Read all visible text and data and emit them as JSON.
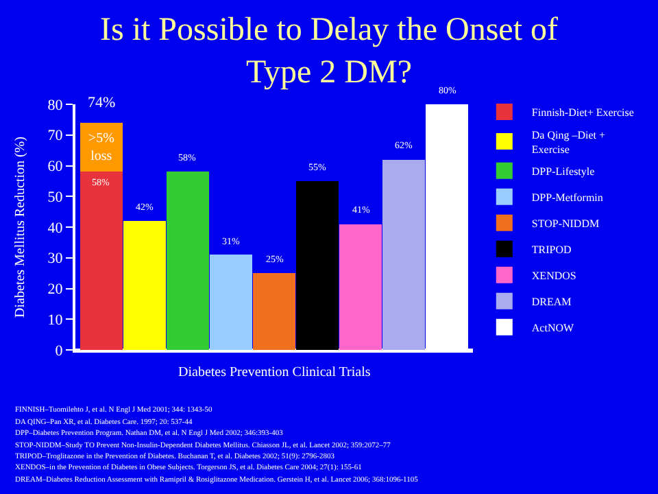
{
  "chart_data": {
    "type": "bar",
    "title": "Is it Possible to Delay the Onset of Type 2 DM?",
    "xlabel": "Diabetes Prevention Clinical Trials",
    "ylabel": "Diabetes Mellitus Reduction (%)",
    "categories": [
      null,
      null,
      null,
      null,
      null,
      null,
      null,
      null,
      null
    ],
    "stacked": true,
    "series": [
      {
        "name": "Finnish-Diet+ Exercise",
        "color": "#e8323c",
        "values": [
          58,
          null,
          null,
          null,
          null,
          null,
          null,
          null,
          null
        ],
        "value_labels": [
          "58%",
          null,
          null,
          null,
          null,
          null,
          null,
          null,
          null
        ]
      },
      {
        "name": "Da Qing –Diet + Exercise",
        "color": "#ffff00",
        "values": [
          null,
          42,
          null,
          null,
          null,
          null,
          null,
          null,
          null
        ],
        "value_labels": [
          null,
          "42%",
          null,
          null,
          null,
          null,
          null,
          null,
          null
        ]
      },
      {
        "name": "DPP-Lifestyle",
        "color": "#33cc33",
        "values": [
          null,
          null,
          58,
          null,
          null,
          null,
          null,
          null,
          null
        ],
        "value_labels": [
          null,
          null,
          "58%",
          null,
          null,
          null,
          null,
          null,
          null
        ]
      },
      {
        "name": "DPP-Metformin",
        "color": "#99ccff",
        "values": [
          null,
          null,
          null,
          31,
          null,
          null,
          null,
          null,
          null
        ],
        "value_labels": [
          null,
          null,
          null,
          "31%",
          null,
          null,
          null,
          null,
          null
        ]
      },
      {
        "name": "STOP-NIDDM",
        "color": "#f07020",
        "values": [
          null,
          null,
          null,
          null,
          25,
          null,
          null,
          null,
          null
        ],
        "value_labels": [
          null,
          null,
          null,
          null,
          "25%",
          null,
          null,
          null,
          null
        ]
      },
      {
        "name": "TRIPOD",
        "color": "#000000",
        "values": [
          null,
          null,
          null,
          null,
          null,
          55,
          null,
          null,
          null
        ],
        "value_labels": [
          null,
          null,
          null,
          null,
          null,
          "55%",
          null,
          null,
          null
        ]
      },
      {
        "name": "XENDOS",
        "color": "#ff66cc",
        "values": [
          null,
          null,
          null,
          null,
          null,
          null,
          41,
          null,
          null
        ],
        "value_labels": [
          null,
          null,
          null,
          null,
          null,
          null,
          "41%",
          null,
          null
        ]
      },
      {
        "name": "DREAM",
        "color": "#aaaaee",
        "values": [
          null,
          null,
          null,
          null,
          null,
          null,
          null,
          62,
          null
        ],
        "value_labels": [
          null,
          null,
          null,
          null,
          null,
          null,
          null,
          "62%",
          null
        ]
      },
      {
        "name": "ActNOW",
        "color": "#ffffff",
        "values": [
          null,
          null,
          null,
          null,
          null,
          null,
          null,
          null,
          80
        ],
        "value_labels": [
          null,
          null,
          null,
          null,
          null,
          null,
          null,
          null,
          "80%"
        ]
      },
      {
        "name": ">5% loss",
        "color": "#ff9900",
        "values": [
          16,
          null,
          null,
          null,
          null,
          null,
          null,
          null,
          null
        ]
      }
    ],
    "totals": [
      "74%",
      null,
      null,
      null,
      null,
      null,
      null,
      null,
      null
    ],
    "ylim": [
      0,
      80
    ],
    "yticks": [
      0,
      10,
      20,
      30,
      40,
      50,
      60,
      70,
      80
    ],
    "grid": false,
    "legend": "right",
    "annotations": [
      "FINNISH–Tuomilehto J, et al. N Engl J Med 2001; 344: 1343-50",
      "DA QING–Pan XR, et al. Diabetes Care. 1997; 20: 537-44",
      "DPP–Diabetes Prevention Program. Nathan DM, et al. N Engl J Med 2002; 346:393-403",
      "STOP-NIDDM–Study TO Prevent Non-Insulin-Dependent Diabetes Mellitus. Chiasson JL, et al. Lancet 2002; 359:2072–77",
      "TRIPOD–Troglitazone in the Prevention of Diabetes. Buchanan T, et al. Diabetes 2002; 51(9): 2796-2803",
      "XENDOS–in the Prevention of Diabetes in Obese Subjects. Torgerson JS, et al. Diabetes Care 2004; 27(1): 155-61",
      "DREAM–Diabetes Reduction Assessment with Ramipril & Rosiglitazone Medication. Gerstein H, et al. Lancet 2006; 368:1096-1105"
    ]
  }
}
